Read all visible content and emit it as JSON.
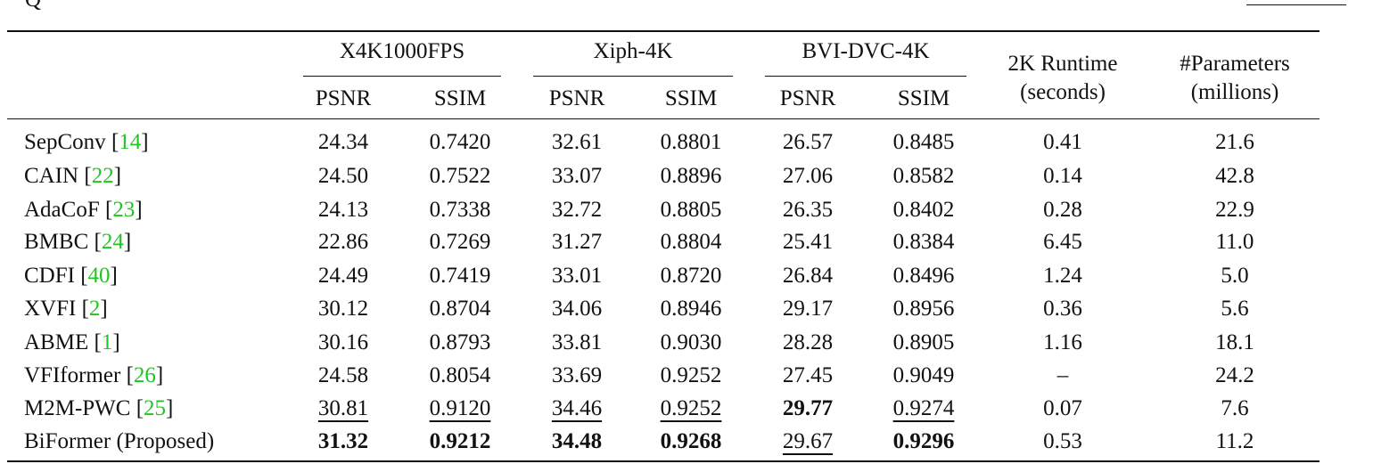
{
  "caption_fragment": "Q",
  "table": {
    "group_headers": [
      "X4K1000FPS",
      "Xiph-4K",
      "BVI-DVC-4K"
    ],
    "sub_headers": [
      "PSNR",
      "SSIM",
      "PSNR",
      "SSIM",
      "PSNR",
      "SSIM"
    ],
    "runtime_header": {
      "line1": "2K Runtime",
      "line2": "(seconds)"
    },
    "params_header": {
      "line1": "#Parameters",
      "line2": "(millions)"
    },
    "rows": [
      {
        "method": "SepConv",
        "ref": "14",
        "values": [
          "24.34",
          "0.7420",
          "32.61",
          "0.8801",
          "26.57",
          "0.8485",
          "0.41",
          "21.6"
        ],
        "bold": [],
        "underline": []
      },
      {
        "method": "CAIN",
        "ref": "22",
        "values": [
          "24.50",
          "0.7522",
          "33.07",
          "0.8896",
          "27.06",
          "0.8582",
          "0.14",
          "42.8"
        ],
        "bold": [],
        "underline": []
      },
      {
        "method": "AdaCoF",
        "ref": "23",
        "values": [
          "24.13",
          "0.7338",
          "32.72",
          "0.8805",
          "26.35",
          "0.8402",
          "0.28",
          "22.9"
        ],
        "bold": [],
        "underline": []
      },
      {
        "method": "BMBC",
        "ref": "24",
        "values": [
          "22.86",
          "0.7269",
          "31.27",
          "0.8804",
          "25.41",
          "0.8384",
          "6.45",
          "11.0"
        ],
        "bold": [],
        "underline": []
      },
      {
        "method": "CDFI",
        "ref": "40",
        "values": [
          "24.49",
          "0.7419",
          "33.01",
          "0.8720",
          "26.84",
          "0.8496",
          "1.24",
          "5.0"
        ],
        "bold": [],
        "underline": []
      },
      {
        "method": "XVFI",
        "ref": "2",
        "values": [
          "30.12",
          "0.8704",
          "34.06",
          "0.8946",
          "29.17",
          "0.8956",
          "0.36",
          "5.6"
        ],
        "bold": [],
        "underline": []
      },
      {
        "method": "ABME",
        "ref": "1",
        "values": [
          "30.16",
          "0.8793",
          "33.81",
          "0.9030",
          "28.28",
          "0.8905",
          "1.16",
          "18.1"
        ],
        "bold": [],
        "underline": []
      },
      {
        "method": "VFIformer",
        "ref": "26",
        "values": [
          "24.58",
          "0.8054",
          "33.69",
          "0.9252",
          "27.45",
          "0.9049",
          "–",
          "24.2"
        ],
        "bold": [],
        "underline": []
      },
      {
        "method": "M2M-PWC",
        "ref": "25",
        "values": [
          "30.81",
          "0.9120",
          "34.46",
          "0.9252",
          "29.77",
          "0.9274",
          "0.07",
          "7.6"
        ],
        "bold": [
          4
        ],
        "underline": [
          0,
          1,
          2,
          3,
          5
        ]
      },
      {
        "method": "BiFormer (Proposed)",
        "ref": "",
        "values": [
          "31.32",
          "0.9212",
          "34.48",
          "0.9268",
          "29.67",
          "0.9296",
          "0.53",
          "11.2"
        ],
        "bold": [
          0,
          1,
          2,
          3,
          5
        ],
        "underline": [
          4
        ]
      }
    ]
  }
}
